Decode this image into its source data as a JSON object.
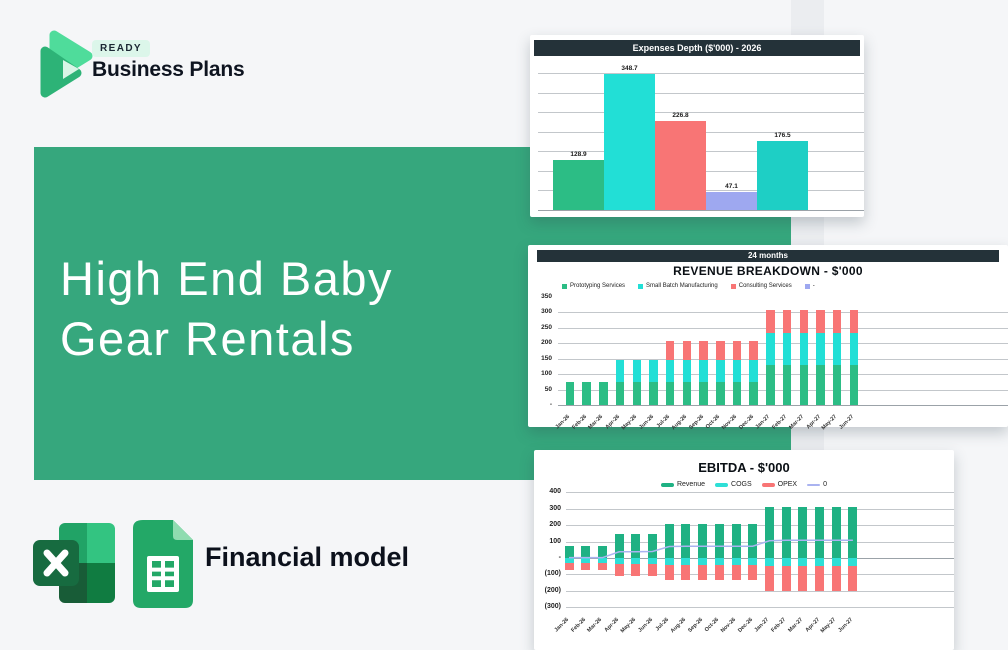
{
  "brand": {
    "badge": "READY",
    "name": "Business Plans",
    "logo_icon": "play-triangles-icon"
  },
  "banner": {
    "title": "High End Baby Gear Rentals"
  },
  "footer": {
    "label": "Financial model",
    "icons": [
      "excel-icon",
      "google-sheets-icon"
    ]
  },
  "colors": {
    "banner_green": "#36a77d",
    "logo_light_green": "#4fdc9b",
    "logo_dark_green": "#2db377",
    "logo_pale_green": "#d8f5e6",
    "header_dark": "#243239",
    "chart_green": "#2cbd85",
    "chart_cyan": "#22dfd6",
    "chart_red": "#f87575",
    "chart_periwinkle": "#9ea8f0",
    "chart_teal": "#1ecfc5",
    "ebitda_green": "#1fb183",
    "ebitda_line": "#aab3f0",
    "gridline": "#c3c7cb",
    "background": "#f5f6f8"
  },
  "chart_data": [
    {
      "name": "expenses-depth",
      "type": "bar",
      "title": "Expenses Depth ($'000) - 2026",
      "values": [
        128.9,
        348.7,
        226.8,
        47.1,
        176.5
      ],
      "value_labels": [
        "128.9",
        "348.7",
        "226.8",
        "47.1",
        "176.5"
      ],
      "bar_colors": [
        "#2cbd85",
        "#22dfd6",
        "#f87575",
        "#9ea8f0",
        "#1ecfc5"
      ],
      "ylim": [
        0,
        350
      ],
      "grid_step": 50,
      "legend_position": "none"
    },
    {
      "name": "revenue-breakdown",
      "type": "stacked-bar",
      "header": "24 months",
      "title": "REVENUE BREAKDOWN - $'000",
      "yticks": [
        "350",
        "300",
        "250",
        "200",
        "150",
        "100",
        "50",
        "-"
      ],
      "ylim": [
        0,
        350
      ],
      "categories": [
        "Jan-26",
        "Feb-26",
        "Mar-26",
        "Apr-26",
        "May-26",
        "Jun-26",
        "Jul-26",
        "Aug-26",
        "Sep-26",
        "Oct-26",
        "Nov-26",
        "Dec-26",
        "Jan-27",
        "Feb-27",
        "Mar-27",
        "Apr-27",
        "May-27",
        "Jun-27"
      ],
      "legend": [
        {
          "label": "Prototyping Services",
          "color": "#2cbd85",
          "type": "square"
        },
        {
          "label": "Small Batch Manufacturing",
          "color": "#22dfd6",
          "type": "square"
        },
        {
          "label": "Consulting Services",
          "color": "#f87575",
          "type": "square"
        },
        {
          "label": "-",
          "color": "#9ea8f0",
          "type": "square"
        }
      ],
      "series": [
        {
          "name": "Prototyping Services",
          "color": "#2cbd85",
          "values": [
            75,
            75,
            75,
            75,
            75,
            75,
            75,
            75,
            75,
            75,
            75,
            75,
            128,
            128,
            128,
            128,
            128,
            128
          ]
        },
        {
          "name": "Small Batch Manufacturing",
          "color": "#22dfd6",
          "values": [
            0,
            0,
            0,
            70,
            70,
            70,
            70,
            70,
            70,
            70,
            70,
            70,
            104,
            104,
            104,
            104,
            104,
            104
          ]
        },
        {
          "name": "Consulting Services",
          "color": "#f87575",
          "values": [
            0,
            0,
            0,
            0,
            0,
            0,
            60,
            60,
            60,
            60,
            60,
            60,
            76,
            76,
            76,
            76,
            76,
            76
          ]
        }
      ]
    },
    {
      "name": "ebitda",
      "type": "stacked-bar-line",
      "title": "EBITDA - $'000",
      "yticks": [
        "400",
        "300",
        "200",
        "100",
        "-",
        "(100)",
        "(200)",
        "(300)"
      ],
      "ytick_values": [
        400,
        300,
        200,
        100,
        0,
        -100,
        -200,
        -300
      ],
      "ylim": [
        -300,
        400
      ],
      "categories": [
        "Jan-26",
        "Feb-26",
        "Mar-26",
        "Apr-26",
        "May-26",
        "Jun-26",
        "Jul-26",
        "Aug-26",
        "Sep-26",
        "Oct-26",
        "Nov-26",
        "Dec-26",
        "Jan-27",
        "Feb-27",
        "Mar-27",
        "Apr-27",
        "May-27",
        "Jun-27"
      ],
      "legend": [
        {
          "label": "Revenue",
          "color": "#1fb183",
          "type": "bar"
        },
        {
          "label": "COGS",
          "color": "#2edfd6",
          "type": "bar"
        },
        {
          "label": "OPEX",
          "color": "#f87575",
          "type": "bar"
        },
        {
          "label": "0",
          "color": "#aab3f0",
          "type": "line"
        }
      ],
      "series": [
        {
          "name": "Revenue",
          "color": "#1fb183",
          "direction": "up",
          "values": [
            75,
            75,
            75,
            145,
            145,
            145,
            205,
            205,
            205,
            205,
            205,
            205,
            310,
            310,
            310,
            310,
            310,
            310
          ]
        },
        {
          "name": "COGS",
          "color": "#2edfd6",
          "direction": "down",
          "values": [
            30,
            30,
            30,
            35,
            35,
            35,
            40,
            40,
            40,
            40,
            40,
            40,
            47,
            47,
            47,
            47,
            47,
            47
          ]
        },
        {
          "name": "OPEX",
          "color": "#f87575",
          "direction": "down",
          "values": [
            45,
            45,
            45,
            72,
            72,
            72,
            93,
            93,
            93,
            93,
            93,
            93,
            155,
            155,
            155,
            155,
            155,
            155
          ]
        }
      ],
      "line": {
        "name": "0",
        "color": "#aab3f0",
        "values": [
          2,
          2,
          2,
          38,
          38,
          40,
          70,
          72,
          72,
          72,
          72,
          72,
          105,
          108,
          108,
          108,
          108,
          108
        ]
      }
    }
  ]
}
